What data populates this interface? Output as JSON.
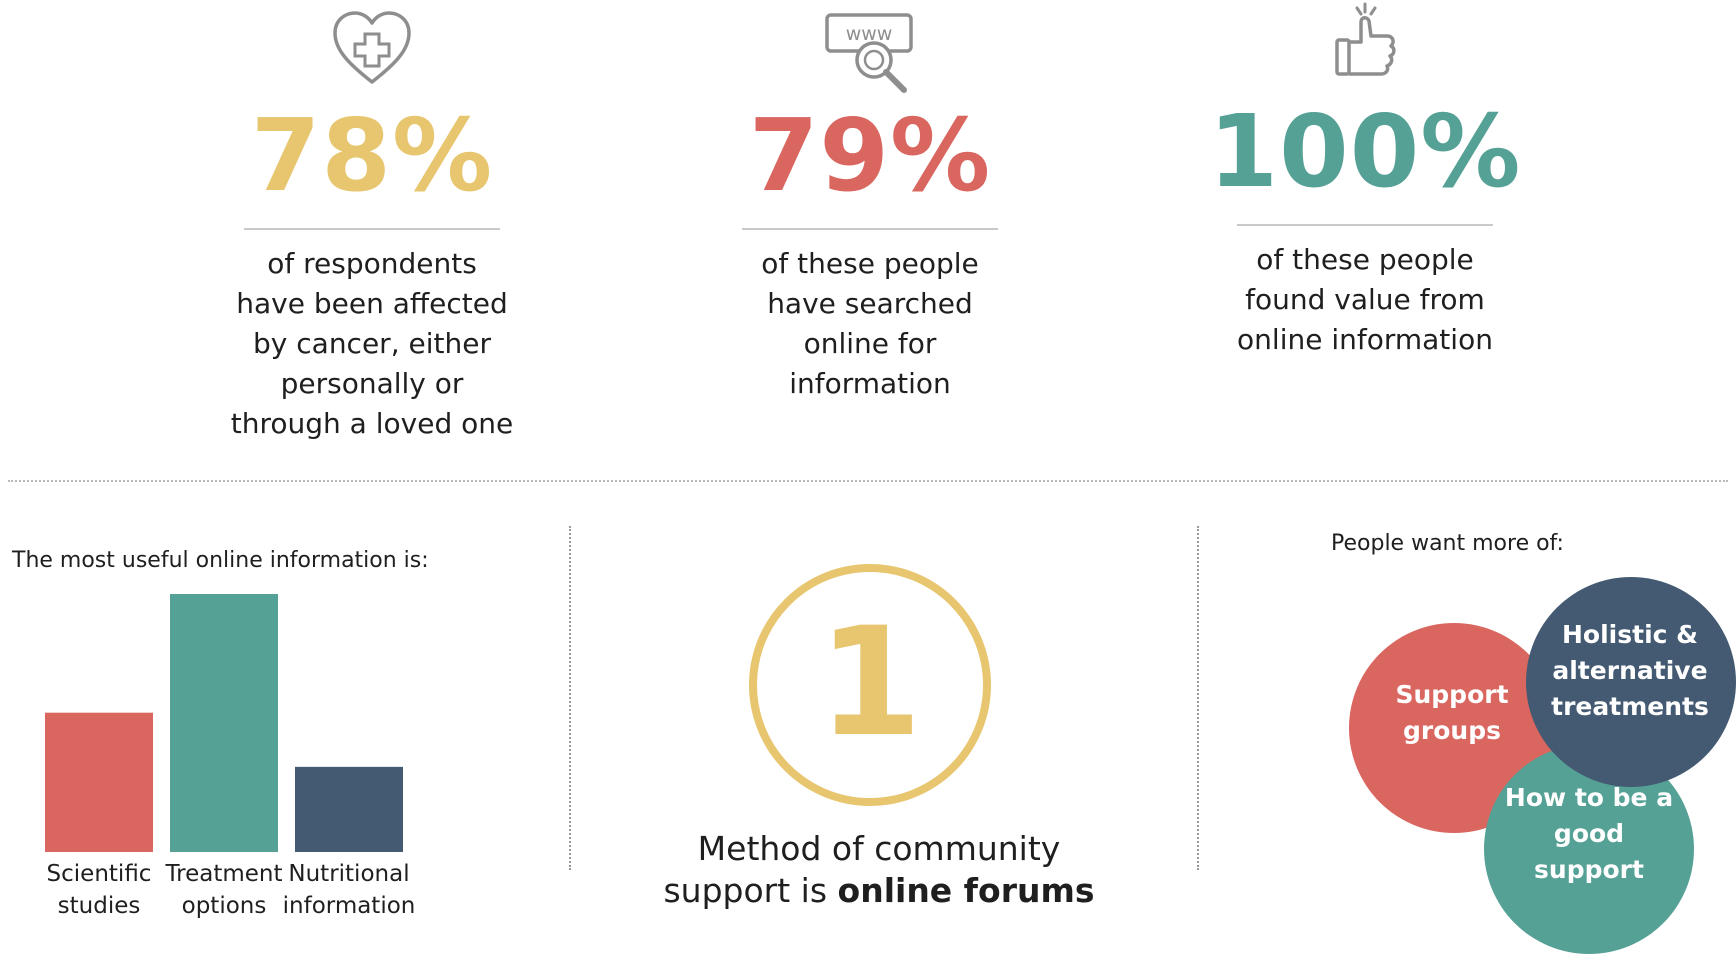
{
  "colors": {
    "yellow": "#e8c66f",
    "red": "#da6660",
    "teal": "#56a196",
    "navy": "#445a72"
  },
  "stats": [
    {
      "icon": "heart-plus-icon",
      "value": "78%",
      "color": "#e8c66f",
      "lines": [
        "of respondents",
        "have been affected",
        "by cancer, either",
        "personally or",
        "through a loved one"
      ]
    },
    {
      "icon": "www-search-icon",
      "value": "79%",
      "color": "#da6660",
      "lines": [
        "of these people",
        "have searched",
        "online for",
        "information"
      ]
    },
    {
      "icon": "thumbs-up-icon",
      "value": "100%",
      "color": "#56a196",
      "lines": [
        "of these people",
        "found value from",
        "online information"
      ]
    }
  ],
  "chart_data": {
    "type": "bar",
    "title": "The most useful online information is:",
    "categories": [
      "Scientific studies",
      "Treatment options",
      "Nutritional information"
    ],
    "category_lines": [
      [
        "Scientific",
        "studies"
      ],
      [
        "Treatment",
        "options"
      ],
      [
        "Nutritional",
        "information"
      ]
    ],
    "values": [
      0.54,
      1.0,
      0.33
    ],
    "colors": [
      "#da6660",
      "#56a196",
      "#445a72"
    ],
    "ylim": [
      0,
      1
    ]
  },
  "community": {
    "number": "1",
    "line1": "Method of community",
    "line2_prefix": "support is ",
    "line2_bold": "online forums"
  },
  "wants": {
    "title": "People want more of:",
    "bubbles": [
      {
        "lines": [
          "Support",
          "groups"
        ],
        "color": "#da6660"
      },
      {
        "lines": [
          "Holistic &",
          "alternative",
          "treatments"
        ],
        "color": "#445a72"
      },
      {
        "lines": [
          "How to be a",
          "good",
          "support"
        ],
        "color": "#56a196"
      }
    ]
  }
}
